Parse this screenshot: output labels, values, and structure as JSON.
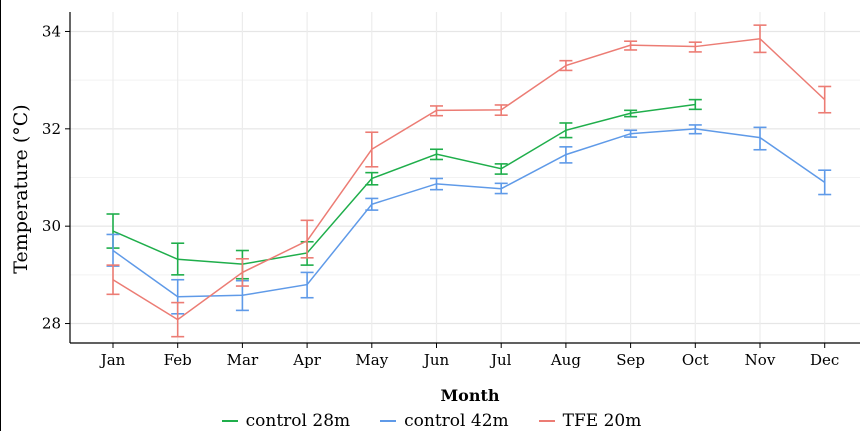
{
  "chart_data": {
    "type": "line",
    "title": "",
    "xlabel": "Month",
    "ylabel": "Temperature (°C)",
    "categories": [
      "Jan",
      "Feb",
      "Mar",
      "Apr",
      "May",
      "Jun",
      "Jul",
      "Aug",
      "Sep",
      "Oct",
      "Nov",
      "Dec"
    ],
    "ylim": [
      27.6,
      34.4
    ],
    "yticks": [
      28,
      30,
      32,
      34
    ],
    "grid": true,
    "legend_position": "bottom",
    "series": [
      {
        "name": "control 28m",
        "color": "#1fae4b",
        "values": [
          29.9,
          29.32,
          29.22,
          29.45,
          30.98,
          31.48,
          31.18,
          31.97,
          32.32,
          32.5,
          null,
          null
        ],
        "err_low": [
          29.55,
          29.0,
          28.92,
          29.2,
          30.85,
          31.37,
          31.07,
          31.82,
          32.25,
          32.4,
          null,
          null
        ],
        "err_high": [
          30.25,
          29.65,
          29.5,
          29.68,
          31.1,
          31.58,
          31.28,
          32.12,
          32.38,
          32.6,
          null,
          null
        ]
      },
      {
        "name": "control 42m",
        "color": "#5f9ae8",
        "values": [
          29.5,
          28.55,
          28.58,
          28.8,
          30.45,
          30.87,
          30.77,
          31.47,
          31.9,
          32.0,
          31.82,
          30.9
        ],
        "err_low": [
          29.18,
          28.2,
          28.27,
          28.53,
          30.33,
          30.75,
          30.67,
          31.3,
          31.83,
          31.9,
          31.57,
          30.65
        ],
        "err_high": [
          29.83,
          28.9,
          28.88,
          29.05,
          30.57,
          30.98,
          30.88,
          31.63,
          31.97,
          32.08,
          32.03,
          31.15
        ]
      },
      {
        "name": "TFE 20m",
        "color": "#ec7c74",
        "values": [
          28.9,
          28.08,
          29.05,
          29.7,
          31.58,
          32.38,
          32.39,
          33.3,
          33.72,
          33.69,
          33.85,
          32.6
        ],
        "err_low": [
          28.6,
          27.73,
          28.77,
          29.35,
          31.22,
          32.27,
          32.28,
          33.2,
          33.62,
          33.58,
          33.57,
          32.33
        ],
        "err_high": [
          29.2,
          28.43,
          29.33,
          30.12,
          31.93,
          32.47,
          32.49,
          33.4,
          33.8,
          33.78,
          34.13,
          32.87
        ]
      }
    ]
  }
}
